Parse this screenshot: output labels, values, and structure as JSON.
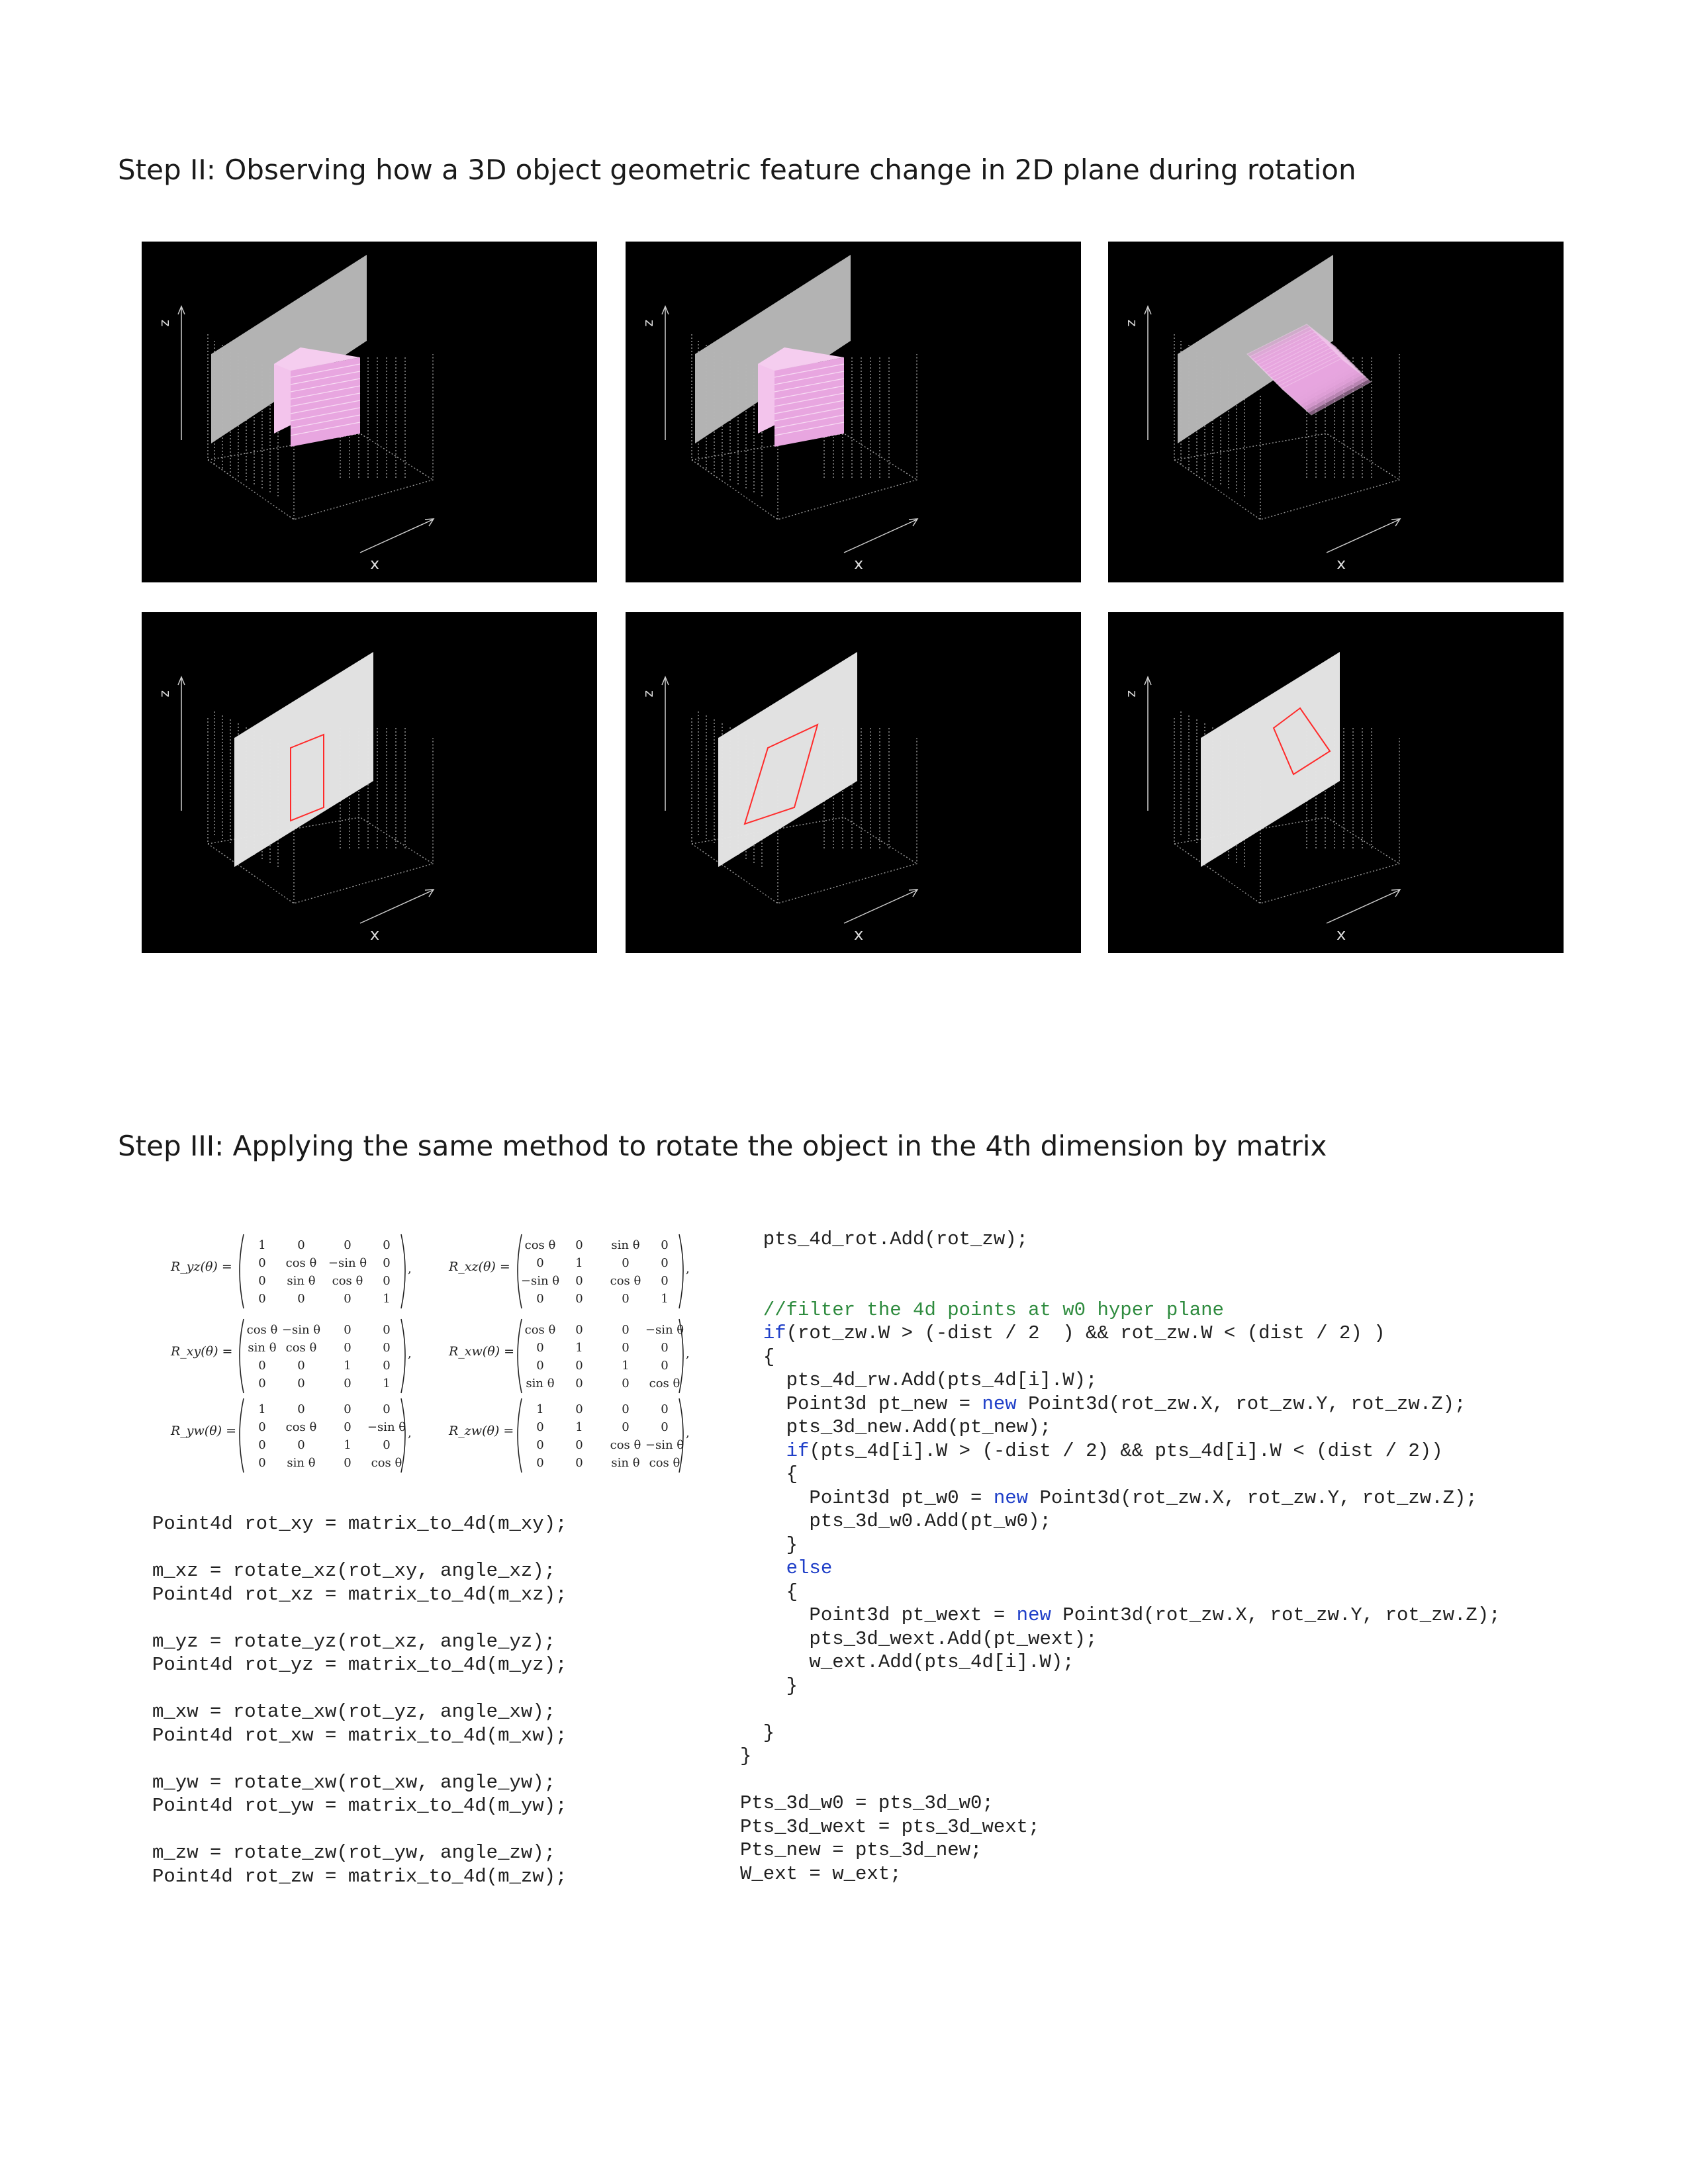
{
  "doc": {
    "step2_title": "Step II: Observing how a 3D object geometric feature change in 2D plane during rotation",
    "step3_title": "Step III: Applying the same method to rotate the object in the 4th dimension by matrix"
  },
  "panels": {
    "axis_z": "z",
    "axis_x": "x",
    "top_row": [
      {
        "name": "solid-cube-view-1",
        "object": "pink-voxel-cube"
      },
      {
        "name": "solid-cube-view-2",
        "object": "pink-voxel-cube"
      },
      {
        "name": "solid-cube-view-3",
        "object": "pink-voxel-cube-rotated"
      }
    ],
    "bottom_row": [
      {
        "name": "slice-view-1",
        "object": "red-cross-section-outline"
      },
      {
        "name": "slice-view-2",
        "object": "red-cross-section-outline"
      },
      {
        "name": "slice-view-3",
        "object": "red-cross-section-outline"
      }
    ],
    "colors": {
      "background": "#000000",
      "plane_top": "#b7b7b7",
      "plane_bottom": "#e6e6e6",
      "cube": "#e8a6e0",
      "outline": "#ff2a2a",
      "grid": "#9a9a9a"
    }
  },
  "matrices": [
    {
      "label": "R_yz(θ) =",
      "rows": [
        [
          "1",
          "0",
          "0",
          "0"
        ],
        [
          "0",
          "cos θ",
          "−sin θ",
          "0"
        ],
        [
          "0",
          "sin θ",
          "cos θ",
          "0"
        ],
        [
          "0",
          "0",
          "0",
          "1"
        ]
      ]
    },
    {
      "label": "R_xz(θ) =",
      "rows": [
        [
          "cos θ",
          "0",
          "sin θ",
          "0"
        ],
        [
          "0",
          "1",
          "0",
          "0"
        ],
        [
          "−sin θ",
          "0",
          "cos θ",
          "0"
        ],
        [
          "0",
          "0",
          "0",
          "1"
        ]
      ]
    },
    {
      "label": "R_xy(θ) =",
      "rows": [
        [
          "cos θ",
          "−sin θ",
          "0",
          "0"
        ],
        [
          "sin θ",
          "cos θ",
          "0",
          "0"
        ],
        [
          "0",
          "0",
          "1",
          "0"
        ],
        [
          "0",
          "0",
          "0",
          "1"
        ]
      ]
    },
    {
      "label": "R_xw(θ) =",
      "rows": [
        [
          "cos θ",
          "0",
          "0",
          "−sin θ"
        ],
        [
          "0",
          "1",
          "0",
          "0"
        ],
        [
          "0",
          "0",
          "1",
          "0"
        ],
        [
          "sin θ",
          "0",
          "0",
          "cos θ"
        ]
      ]
    },
    {
      "label": "R_yw(θ) =",
      "rows": [
        [
          "1",
          "0",
          "0",
          "0"
        ],
        [
          "0",
          "cos θ",
          "0",
          "−sin θ"
        ],
        [
          "0",
          "0",
          "1",
          "0"
        ],
        [
          "0",
          "sin θ",
          "0",
          "cos θ"
        ]
      ]
    },
    {
      "label": "R_zw(θ) =",
      "rows": [
        [
          "1",
          "0",
          "0",
          "0"
        ],
        [
          "0",
          "1",
          "0",
          "0"
        ],
        [
          "0",
          "0",
          "cos θ",
          "−sin θ"
        ],
        [
          "0",
          "0",
          "sin θ",
          "cos θ"
        ]
      ]
    }
  ],
  "code_left": [
    "Point4d rot_xy = matrix_to_4d(m_xy);",
    "",
    "m_xz = rotate_xz(rot_xy, angle_xz);",
    "Point4d rot_xz = matrix_to_4d(m_xz);",
    "",
    "m_yz = rotate_yz(rot_xz, angle_yz);",
    "Point4d rot_yz = matrix_to_4d(m_yz);",
    "",
    "m_xw = rotate_xw(rot_yz, angle_xw);",
    "Point4d rot_xw = matrix_to_4d(m_xw);",
    "",
    "m_yw = rotate_xw(rot_xw, angle_yw);",
    "Point4d rot_yw = matrix_to_4d(m_yw);",
    "",
    "m_zw = rotate_zw(rot_yw, angle_zw);",
    "Point4d rot_zw = matrix_to_4d(m_zw);"
  ],
  "code_right": [
    "  pts_4d_rot.Add(rot_zw);",
    "",
    "",
    "  //filter the 4d points at w0 hyper plane",
    "  if(rot_zw.W > (-dist / 2  ) && rot_zw.W < (dist / 2) )",
    "  {",
    "    pts_4d_rw.Add(pts_4d[i].W);",
    "    Point3d pt_new = new Point3d(rot_zw.X, rot_zw.Y, rot_zw.Z);",
    "    pts_3d_new.Add(pt_new);",
    "    if(pts_4d[i].W > (-dist / 2) && pts_4d[i].W < (dist / 2))",
    "    {",
    "      Point3d pt_w0 = new Point3d(rot_zw.X, rot_zw.Y, rot_zw.Z);",
    "      pts_3d_w0.Add(pt_w0);",
    "    }",
    "    else",
    "    {",
    "      Point3d pt_wext = new Point3d(rot_zw.X, rot_zw.Y, rot_zw.Z);",
    "      pts_3d_wext.Add(pt_wext);",
    "      w_ext.Add(pts_4d[i].W);",
    "    }",
    "",
    "  }",
    "}",
    "",
    "Pts_3d_w0 = pts_3d_w0;",
    "Pts_3d_wext = pts_3d_wext;",
    "Pts_new = pts_3d_new;",
    "W_ext = w_ext;"
  ]
}
